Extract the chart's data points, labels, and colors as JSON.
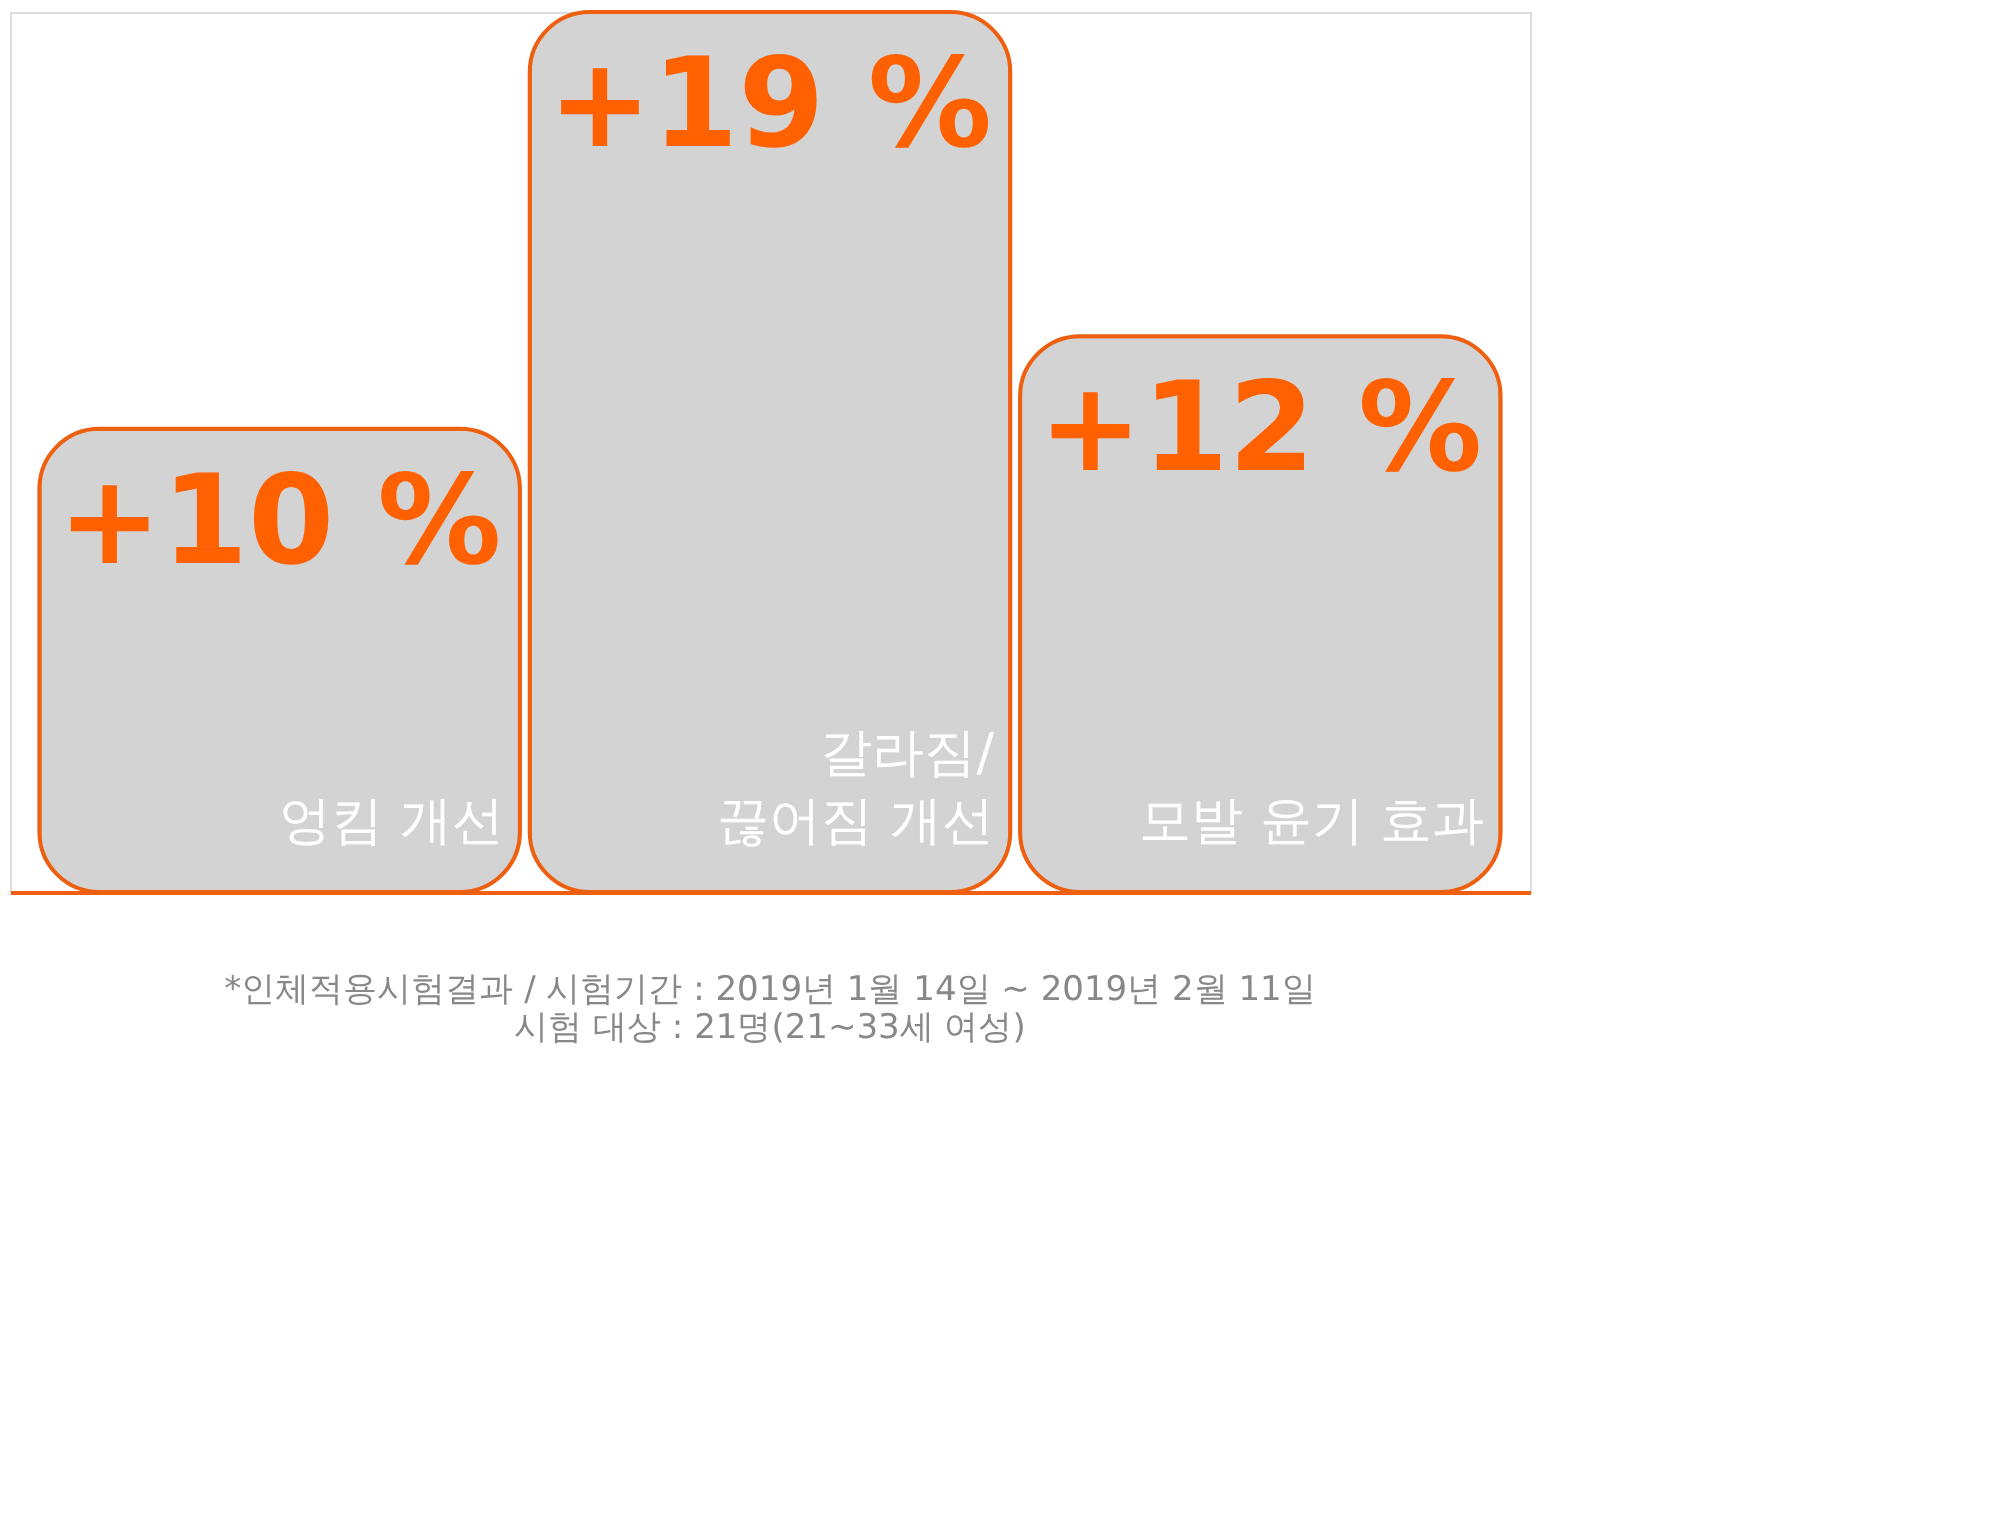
{
  "chart_data": {
    "type": "bar",
    "categories": [
      "엉킴 개선",
      "갈라짐/\n끊어짐 개선",
      "모발 윤기 효과"
    ],
    "values": [
      10,
      19,
      12
    ],
    "value_labels": [
      "+10 %",
      "+19 %",
      "+12 %"
    ],
    "color": "#d3d3d3",
    "annotations": [
      "*인체적용시험결과 / 시험기간 : 2019년 1월 14일 ~ 2019년 2월 11일",
      "시험 대상 : 21명(21~33세 여성)"
    ]
  }
}
